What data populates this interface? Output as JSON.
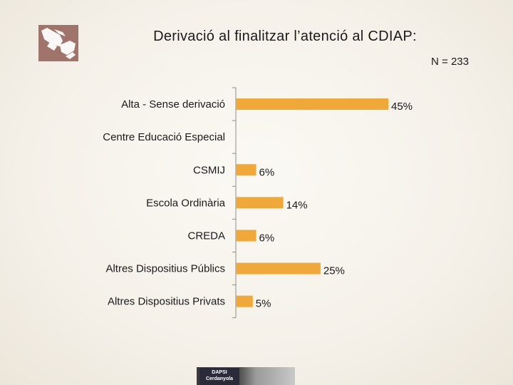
{
  "title": "Derivació al finalitzar l’atenció al CDIAP:",
  "n_label": "N = 233",
  "footer_logo_text": "DAPSI Cerdanyola",
  "colors": {
    "bar": "#f0a83a",
    "axis": "#8c8c8c",
    "logo_bg": "#a0746a"
  },
  "chart_data": {
    "type": "bar",
    "orientation": "horizontal",
    "categories": [
      "Alta - Sense derivació",
      "Centre Educació Especial",
      "CSMIJ",
      "Escola Ordinària",
      "CREDA",
      "Altres Dispositius Públics",
      "Altres Dispositius Privats"
    ],
    "values": [
      45,
      0,
      6,
      14,
      6,
      25,
      5
    ],
    "data_labels": [
      "45%",
      "",
      "6%",
      "14%",
      "6%",
      "25%",
      "5%"
    ],
    "unit": "%",
    "xlim": [
      0,
      45
    ],
    "grid": false,
    "legend": "none"
  }
}
